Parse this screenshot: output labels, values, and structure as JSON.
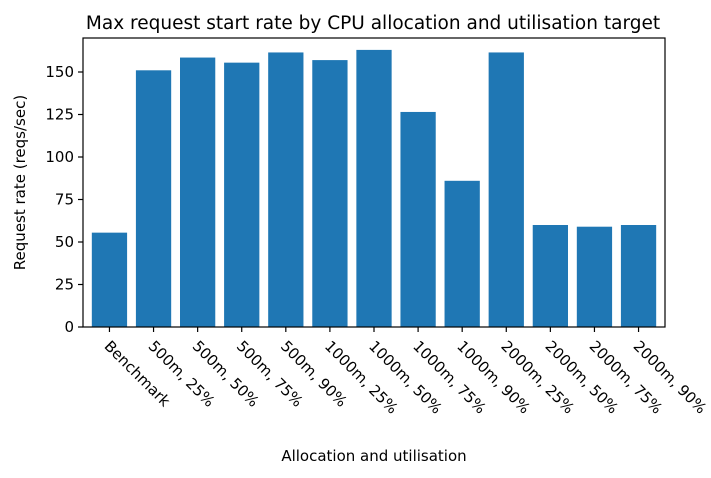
{
  "chart_data": {
    "type": "bar",
    "title": "Max request start rate by CPU allocation and utilisation target",
    "xlabel": "Allocation and utilisation",
    "ylabel": "Request rate (reqs/sec)",
    "categories": [
      "Benchmark",
      "500m, 25%",
      "500m, 50%",
      "500m, 75%",
      "500m, 90%",
      "1000m, 25%",
      "1000m, 50%",
      "1000m, 75%",
      "1000m, 90%",
      "2000m, 25%",
      "2000m, 50%",
      "2000m, 75%",
      "2000m, 90%"
    ],
    "values": [
      55.5,
      151,
      158.5,
      155.5,
      161.5,
      157,
      163,
      126.5,
      86,
      161.5,
      60,
      59,
      60
    ],
    "ylim": [
      0,
      170
    ],
    "yticks": [
      0,
      25,
      50,
      75,
      100,
      125,
      150
    ],
    "grid": false,
    "legend": "none",
    "colors": {
      "bar": "#1f77b4"
    }
  }
}
